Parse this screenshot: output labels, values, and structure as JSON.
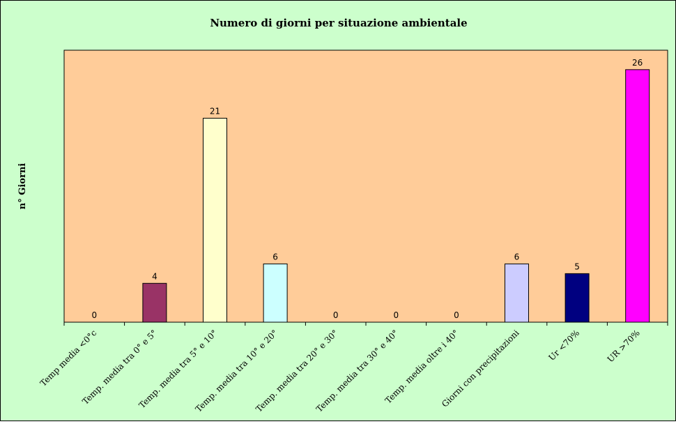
{
  "chart_data": {
    "type": "bar",
    "title": "Numero di giorni per situazione ambientale",
    "xlabel": "",
    "ylabel": "n° Giorni",
    "ylim": [
      0,
      28
    ],
    "grid": false,
    "legend": "none",
    "categories": [
      "Temp media <0°c",
      "Temp. media tra 0° e 5°",
      "Temp. media tra 5° e 10°",
      "Temp. media tra 10° e 20°",
      "Temp. media tra 20° e 30°",
      "Temp. media tra 30° e 40°",
      "Temp. media oltre i 40°",
      "Giorni con precipitazioni",
      "Ur <70%",
      "UR >70%"
    ],
    "values": [
      0,
      4,
      21,
      6,
      0,
      0,
      0,
      6,
      5,
      26
    ],
    "colors": [
      "#9999ff",
      "#993366",
      "#ffffcc",
      "#ccffff",
      "#660066",
      "#ff8080",
      "#0066cc",
      "#ccccff",
      "#000080",
      "#ff00ff"
    ]
  },
  "style": {
    "page_background": "#ccffcc",
    "plot_background": "#ffcc99"
  }
}
